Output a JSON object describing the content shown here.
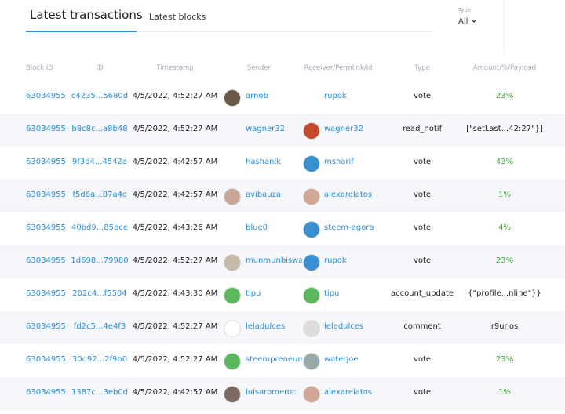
{
  "tabs": [
    "Latest transactions",
    "Latest blocks"
  ],
  "filter": {
    "label": "Type",
    "value": "All"
  },
  "table": {
    "columns": [
      "Block ID",
      "ID",
      "Timestamp",
      "Sender",
      "Receiver/Permlink/Id",
      "Type",
      "Amount/%/Payload"
    ],
    "rows": [
      [
        "63034955",
        "c4235...5680d",
        "4/5/2022, 4:52:27 AM",
        "arnob",
        "rupok",
        "vote",
        "23%"
      ],
      [
        "63034955",
        "b8c8c...a8b48",
        "4/5/2022, 4:52:27 AM",
        "wagner32",
        "wagner32",
        "read_notif",
        "[\"setLast...42:27\"}]"
      ],
      [
        "63034955",
        "9f3d4...4542a",
        "4/5/2022, 4:42:57 AM",
        "hashanlk",
        "msharif",
        "vote",
        "43%"
      ],
      [
        "63034955",
        "f5d6a...87a4c",
        "4/5/2022, 4:42:57 AM",
        "avibauza",
        "alexarelatos",
        "vote",
        "1%"
      ],
      [
        "63034955",
        "40bd9...85bce",
        "4/5/2022, 4:43:26 AM",
        "blue0",
        "steem-agora",
        "vote",
        "4%"
      ],
      [
        "63034955",
        "1d698...79980",
        "4/5/2022, 4:52:27 AM",
        "munmunbiswas",
        "rupok",
        "vote",
        "23%"
      ],
      [
        "63034955",
        "202c4...f5504",
        "4/5/2022, 4:43:30 AM",
        "tipu",
        "tipu",
        "account_update",
        "{\"profile...nline\"}}"
      ],
      [
        "63034955",
        "fd2c5...4e4f3",
        "4/5/2022, 4:52:27 AM",
        "leladulces",
        "leladulces",
        "comment",
        "r9unos"
      ],
      [
        "63034955",
        "30d92...2f9b0",
        "4/5/2022, 4:52:27 AM",
        "steempreneursh",
        "waterjoe",
        "vote",
        "23%"
      ],
      [
        "63034955",
        "1387c...3eb0d",
        "4/5/2022, 4:42:57 AM",
        "luisaromeroc",
        "alexarelatos",
        "vote",
        "1%"
      ]
    ]
  }
}
